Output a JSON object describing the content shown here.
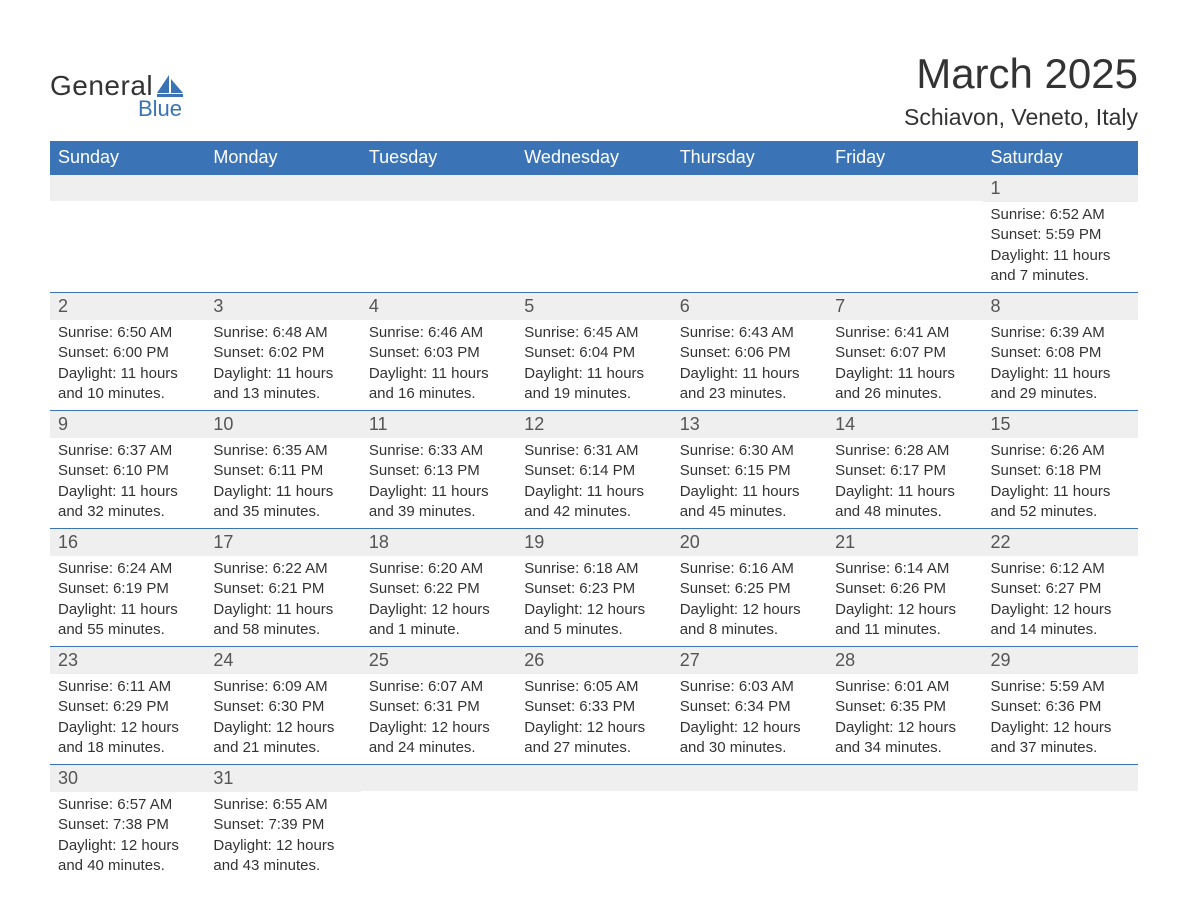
{
  "logo": {
    "text_general": "General",
    "text_blue": "Blue",
    "sail_color": "#3a74b6",
    "text_dark": "#333333"
  },
  "header": {
    "title": "March 2025",
    "location": "Schiavon, Veneto, Italy"
  },
  "colors": {
    "header_bg": "#3a74b6",
    "header_text": "#ffffff",
    "daynum_bg": "#efefef",
    "row_border": "#3a74b6",
    "body_text": "#333333",
    "background": "#ffffff"
  },
  "calendar": {
    "columns": [
      "Sunday",
      "Monday",
      "Tuesday",
      "Wednesday",
      "Thursday",
      "Friday",
      "Saturday"
    ],
    "weeks": [
      [
        {
          "day": "",
          "sunrise": "",
          "sunset": "",
          "daylight1": "",
          "daylight2": ""
        },
        {
          "day": "",
          "sunrise": "",
          "sunset": "",
          "daylight1": "",
          "daylight2": ""
        },
        {
          "day": "",
          "sunrise": "",
          "sunset": "",
          "daylight1": "",
          "daylight2": ""
        },
        {
          "day": "",
          "sunrise": "",
          "sunset": "",
          "daylight1": "",
          "daylight2": ""
        },
        {
          "day": "",
          "sunrise": "",
          "sunset": "",
          "daylight1": "",
          "daylight2": ""
        },
        {
          "day": "",
          "sunrise": "",
          "sunset": "",
          "daylight1": "",
          "daylight2": ""
        },
        {
          "day": "1",
          "sunrise": "Sunrise: 6:52 AM",
          "sunset": "Sunset: 5:59 PM",
          "daylight1": "Daylight: 11 hours",
          "daylight2": "and 7 minutes."
        }
      ],
      [
        {
          "day": "2",
          "sunrise": "Sunrise: 6:50 AM",
          "sunset": "Sunset: 6:00 PM",
          "daylight1": "Daylight: 11 hours",
          "daylight2": "and 10 minutes."
        },
        {
          "day": "3",
          "sunrise": "Sunrise: 6:48 AM",
          "sunset": "Sunset: 6:02 PM",
          "daylight1": "Daylight: 11 hours",
          "daylight2": "and 13 minutes."
        },
        {
          "day": "4",
          "sunrise": "Sunrise: 6:46 AM",
          "sunset": "Sunset: 6:03 PM",
          "daylight1": "Daylight: 11 hours",
          "daylight2": "and 16 minutes."
        },
        {
          "day": "5",
          "sunrise": "Sunrise: 6:45 AM",
          "sunset": "Sunset: 6:04 PM",
          "daylight1": "Daylight: 11 hours",
          "daylight2": "and 19 minutes."
        },
        {
          "day": "6",
          "sunrise": "Sunrise: 6:43 AM",
          "sunset": "Sunset: 6:06 PM",
          "daylight1": "Daylight: 11 hours",
          "daylight2": "and 23 minutes."
        },
        {
          "day": "7",
          "sunrise": "Sunrise: 6:41 AM",
          "sunset": "Sunset: 6:07 PM",
          "daylight1": "Daylight: 11 hours",
          "daylight2": "and 26 minutes."
        },
        {
          "day": "8",
          "sunrise": "Sunrise: 6:39 AM",
          "sunset": "Sunset: 6:08 PM",
          "daylight1": "Daylight: 11 hours",
          "daylight2": "and 29 minutes."
        }
      ],
      [
        {
          "day": "9",
          "sunrise": "Sunrise: 6:37 AM",
          "sunset": "Sunset: 6:10 PM",
          "daylight1": "Daylight: 11 hours",
          "daylight2": "and 32 minutes."
        },
        {
          "day": "10",
          "sunrise": "Sunrise: 6:35 AM",
          "sunset": "Sunset: 6:11 PM",
          "daylight1": "Daylight: 11 hours",
          "daylight2": "and 35 minutes."
        },
        {
          "day": "11",
          "sunrise": "Sunrise: 6:33 AM",
          "sunset": "Sunset: 6:13 PM",
          "daylight1": "Daylight: 11 hours",
          "daylight2": "and 39 minutes."
        },
        {
          "day": "12",
          "sunrise": "Sunrise: 6:31 AM",
          "sunset": "Sunset: 6:14 PM",
          "daylight1": "Daylight: 11 hours",
          "daylight2": "and 42 minutes."
        },
        {
          "day": "13",
          "sunrise": "Sunrise: 6:30 AM",
          "sunset": "Sunset: 6:15 PM",
          "daylight1": "Daylight: 11 hours",
          "daylight2": "and 45 minutes."
        },
        {
          "day": "14",
          "sunrise": "Sunrise: 6:28 AM",
          "sunset": "Sunset: 6:17 PM",
          "daylight1": "Daylight: 11 hours",
          "daylight2": "and 48 minutes."
        },
        {
          "day": "15",
          "sunrise": "Sunrise: 6:26 AM",
          "sunset": "Sunset: 6:18 PM",
          "daylight1": "Daylight: 11 hours",
          "daylight2": "and 52 minutes."
        }
      ],
      [
        {
          "day": "16",
          "sunrise": "Sunrise: 6:24 AM",
          "sunset": "Sunset: 6:19 PM",
          "daylight1": "Daylight: 11 hours",
          "daylight2": "and 55 minutes."
        },
        {
          "day": "17",
          "sunrise": "Sunrise: 6:22 AM",
          "sunset": "Sunset: 6:21 PM",
          "daylight1": "Daylight: 11 hours",
          "daylight2": "and 58 minutes."
        },
        {
          "day": "18",
          "sunrise": "Sunrise: 6:20 AM",
          "sunset": "Sunset: 6:22 PM",
          "daylight1": "Daylight: 12 hours",
          "daylight2": "and 1 minute."
        },
        {
          "day": "19",
          "sunrise": "Sunrise: 6:18 AM",
          "sunset": "Sunset: 6:23 PM",
          "daylight1": "Daylight: 12 hours",
          "daylight2": "and 5 minutes."
        },
        {
          "day": "20",
          "sunrise": "Sunrise: 6:16 AM",
          "sunset": "Sunset: 6:25 PM",
          "daylight1": "Daylight: 12 hours",
          "daylight2": "and 8 minutes."
        },
        {
          "day": "21",
          "sunrise": "Sunrise: 6:14 AM",
          "sunset": "Sunset: 6:26 PM",
          "daylight1": "Daylight: 12 hours",
          "daylight2": "and 11 minutes."
        },
        {
          "day": "22",
          "sunrise": "Sunrise: 6:12 AM",
          "sunset": "Sunset: 6:27 PM",
          "daylight1": "Daylight: 12 hours",
          "daylight2": "and 14 minutes."
        }
      ],
      [
        {
          "day": "23",
          "sunrise": "Sunrise: 6:11 AM",
          "sunset": "Sunset: 6:29 PM",
          "daylight1": "Daylight: 12 hours",
          "daylight2": "and 18 minutes."
        },
        {
          "day": "24",
          "sunrise": "Sunrise: 6:09 AM",
          "sunset": "Sunset: 6:30 PM",
          "daylight1": "Daylight: 12 hours",
          "daylight2": "and 21 minutes."
        },
        {
          "day": "25",
          "sunrise": "Sunrise: 6:07 AM",
          "sunset": "Sunset: 6:31 PM",
          "daylight1": "Daylight: 12 hours",
          "daylight2": "and 24 minutes."
        },
        {
          "day": "26",
          "sunrise": "Sunrise: 6:05 AM",
          "sunset": "Sunset: 6:33 PM",
          "daylight1": "Daylight: 12 hours",
          "daylight2": "and 27 minutes."
        },
        {
          "day": "27",
          "sunrise": "Sunrise: 6:03 AM",
          "sunset": "Sunset: 6:34 PM",
          "daylight1": "Daylight: 12 hours",
          "daylight2": "and 30 minutes."
        },
        {
          "day": "28",
          "sunrise": "Sunrise: 6:01 AM",
          "sunset": "Sunset: 6:35 PM",
          "daylight1": "Daylight: 12 hours",
          "daylight2": "and 34 minutes."
        },
        {
          "day": "29",
          "sunrise": "Sunrise: 5:59 AM",
          "sunset": "Sunset: 6:36 PM",
          "daylight1": "Daylight: 12 hours",
          "daylight2": "and 37 minutes."
        }
      ],
      [
        {
          "day": "30",
          "sunrise": "Sunrise: 6:57 AM",
          "sunset": "Sunset: 7:38 PM",
          "daylight1": "Daylight: 12 hours",
          "daylight2": "and 40 minutes."
        },
        {
          "day": "31",
          "sunrise": "Sunrise: 6:55 AM",
          "sunset": "Sunset: 7:39 PM",
          "daylight1": "Daylight: 12 hours",
          "daylight2": "and 43 minutes."
        },
        {
          "day": "",
          "sunrise": "",
          "sunset": "",
          "daylight1": "",
          "daylight2": ""
        },
        {
          "day": "",
          "sunrise": "",
          "sunset": "",
          "daylight1": "",
          "daylight2": ""
        },
        {
          "day": "",
          "sunrise": "",
          "sunset": "",
          "daylight1": "",
          "daylight2": ""
        },
        {
          "day": "",
          "sunrise": "",
          "sunset": "",
          "daylight1": "",
          "daylight2": ""
        },
        {
          "day": "",
          "sunrise": "",
          "sunset": "",
          "daylight1": "",
          "daylight2": ""
        }
      ]
    ]
  }
}
